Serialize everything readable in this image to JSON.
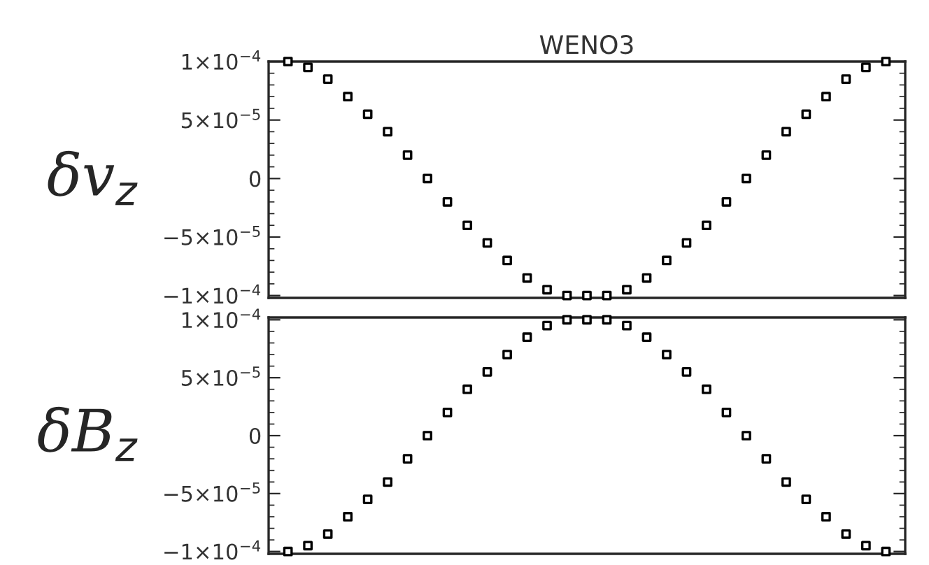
{
  "chart_data": [
    {
      "type": "scatter",
      "title": "WENO3",
      "ylabel": "δv$_{z}$",
      "marker": "square",
      "tick_labels": "y",
      "grid": false,
      "legend": false,
      "categories": [
        null,
        null,
        null,
        null,
        null,
        null,
        null,
        null,
        null,
        null,
        null,
        null,
        null,
        null,
        null,
        null,
        null,
        null,
        null,
        null,
        null,
        null,
        null,
        null,
        null,
        null,
        null,
        null,
        null,
        null,
        null
      ],
      "series": [
        {
          "color": "#000000",
          "values": [
            0.0001,
            9.5e-05,
            8.5e-05,
            7e-05,
            5.5e-05,
            4e-05,
            2e-05,
            0,
            -2e-05,
            -4e-05,
            -5.5e-05,
            -7e-05,
            -8.5e-05,
            -9.5e-05,
            -0.0001,
            -0.0001,
            -0.0001,
            -9.5e-05,
            -8.5e-05,
            -7e-05,
            -5.5e-05,
            -4e-05,
            -2e-05,
            0,
            2e-05,
            4e-05,
            5.5e-05,
            7e-05,
            8.5e-05,
            9.5e-05,
            0.0001
          ]
        }
      ],
      "ylim": [
        -0.000102,
        0.0001
      ],
      "yticks": [
        {
          "value": 0.0001,
          "label": "1×10$^{−4}$"
        },
        {
          "value": 5e-05,
          "label": "5×10$^{−5}$"
        },
        0,
        {
          "value": -5e-05,
          "label": "−5×10$^{−5}$"
        },
        {
          "value": -0.0001,
          "label": "−1×10$^{−4}$"
        }
      ]
    },
    {
      "type": "scatter",
      "ylabel": "δB$_{z}$",
      "marker": "square",
      "tick_labels": "y",
      "grid": false,
      "legend": false,
      "categories": [
        null,
        null,
        null,
        null,
        null,
        null,
        null,
        null,
        null,
        null,
        null,
        null,
        null,
        null,
        null,
        null,
        null,
        null,
        null,
        null,
        null,
        null,
        null,
        null,
        null,
        null,
        null,
        null,
        null,
        null,
        null
      ],
      "series": [
        {
          "color": "#000000",
          "values": [
            -0.0001,
            -9.5e-05,
            -8.5e-05,
            -7e-05,
            -5.5e-05,
            -4e-05,
            -2e-05,
            0,
            2e-05,
            4e-05,
            5.5e-05,
            7e-05,
            8.5e-05,
            9.5e-05,
            0.0001,
            0.0001,
            0.0001,
            9.5e-05,
            8.5e-05,
            7e-05,
            5.5e-05,
            4e-05,
            2e-05,
            0,
            -2e-05,
            -4e-05,
            -5.5e-05,
            -7e-05,
            -8.5e-05,
            -9.5e-05,
            -0.0001
          ]
        }
      ],
      "ylim": [
        -0.000102,
        0.000102
      ],
      "yticks": [
        {
          "value": 0.0001,
          "label": "1×10$^{−4}$"
        },
        {
          "value": 5e-05,
          "label": "5×10$^{−5}$"
        },
        0,
        {
          "value": -5e-05,
          "label": "−5×10$^{−5}$"
        },
        {
          "value": -0.0001,
          "label": "−1×10$^{−4}$"
        }
      ]
    }
  ]
}
